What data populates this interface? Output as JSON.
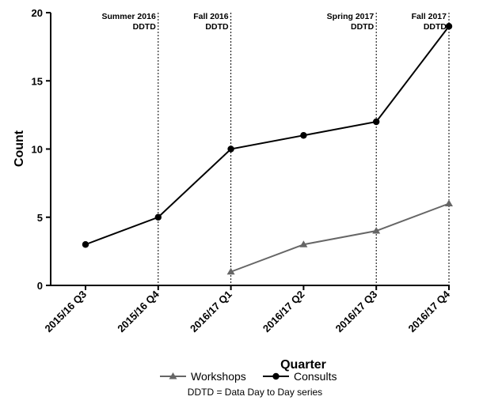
{
  "chart_data": {
    "type": "line",
    "categories": [
      "2015/16 Q3",
      "2015/16 Q4",
      "2016/17 Q1",
      "2016/17 Q2",
      "2016/17 Q3",
      "2016/17 Q4"
    ],
    "series": [
      {
        "name": "Workshops",
        "values": [
          null,
          null,
          1,
          3,
          4,
          6
        ],
        "color": "#666666",
        "marker": "triangle"
      },
      {
        "name": "Consults",
        "values": [
          3,
          5,
          10,
          11,
          12,
          19
        ],
        "color": "#000000",
        "marker": "circle"
      }
    ],
    "xlabel": "Quarter",
    "ylabel": "Count",
    "ylim": [
      0,
      20
    ],
    "yticks": [
      0,
      5,
      10,
      15,
      20
    ],
    "grid": false,
    "legend_position": "bottom",
    "annotations": [
      {
        "category": "2015/16 Q4",
        "line1": "Summer 2016",
        "line2": "DDTD"
      },
      {
        "category": "2016/17 Q1",
        "line1": "Fall 2016",
        "line2": "DDTD"
      },
      {
        "category": "2016/17 Q3",
        "line1": "Spring 2017",
        "line2": "DDTD"
      },
      {
        "category": "2016/17 Q4",
        "line1": "Fall 2017",
        "line2": "DDTD"
      }
    ],
    "footnote": "DDTD = Data Day to Day series"
  }
}
